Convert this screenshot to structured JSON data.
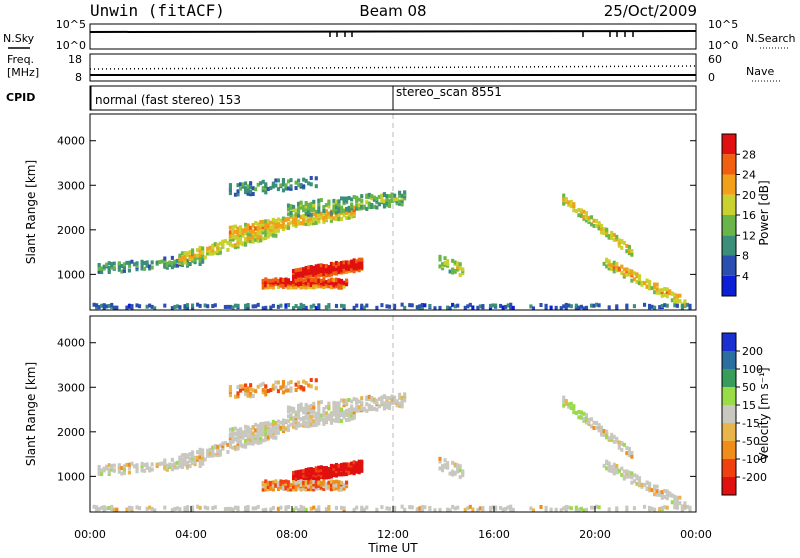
{
  "header": {
    "station": "Unwin (fitACF)",
    "beam": "Beam 08",
    "date": "25/Oct/2009"
  },
  "panels": {
    "nsky": {
      "label": "N.Sky",
      "ticks": [
        "10^5",
        "10^0"
      ],
      "right_label": "N.Search",
      "right_ticks": [
        "10^5",
        "10^0"
      ]
    },
    "freq": {
      "label_line1": "Freq.",
      "label_line2": "[MHz]",
      "ticks": [
        "18",
        "8"
      ],
      "right_label": "Nave",
      "right_ticks": [
        "60",
        "0"
      ]
    },
    "cpid": {
      "label": "CPID",
      "segments": [
        {
          "text": "normal (fast stereo) 153",
          "start_hour": 0
        },
        {
          "text": "stereo_scan 8551",
          "start_hour": 12
        }
      ]
    }
  },
  "chart_data": [
    {
      "type": "heatmap",
      "title": "",
      "ylabel": "Slant Range [km]",
      "xlabel": "",
      "ylim": [
        200,
        4600
      ],
      "yticks": [
        "1000",
        "2000",
        "3000",
        "4000"
      ],
      "colorbar": {
        "label": "Power [dB]",
        "ticks": [
          "4",
          "8",
          "12",
          "16",
          "20",
          "24",
          "28"
        ],
        "range": [
          0,
          30
        ],
        "colors": [
          "#0a1fd6",
          "#2a4fb0",
          "#3b8f7a",
          "#6ab54a",
          "#c9d12e",
          "#f2a01a",
          "#f06010",
          "#e01010"
        ]
      }
    },
    {
      "type": "heatmap",
      "title": "",
      "ylabel": "Slant Range [km]",
      "xlabel": "Time UT",
      "ylim": [
        200,
        4600
      ],
      "yticks": [
        "1000",
        "2000",
        "3000",
        "4000"
      ],
      "xlim": [
        0,
        24
      ],
      "xticks": [
        "00:00",
        "04:00",
        "08:00",
        "12:00",
        "16:00",
        "20:00",
        "00:00"
      ],
      "colorbar": {
        "label": "Velocity [m s⁻¹]",
        "ticks": [
          "200",
          "100",
          "50",
          "15",
          "-15",
          "-50",
          "-100",
          "-200"
        ],
        "range": [
          -250,
          250
        ],
        "colors": [
          "#e01010",
          "#f04010",
          "#f08c1a",
          "#e9b54a",
          "#c8c8c0",
          "#9adb4a",
          "#3a9c5a",
          "#2a6fa0",
          "#1a30d0"
        ]
      }
    }
  ]
}
